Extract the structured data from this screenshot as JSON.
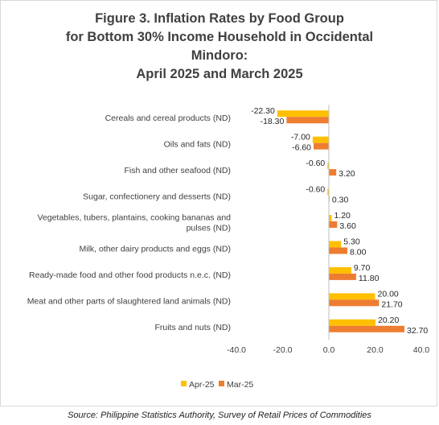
{
  "title_lines": [
    "Figure 3. Inflation Rates by Food Group",
    "for Bottom 30% Income Household in  Occidental",
    "Mindoro:",
    "April 2025 and March 2025"
  ],
  "source": "Source: Philippine Statistics Authority, Survey of Retail Prices of Commodities",
  "chart_data": {
    "type": "bar",
    "orientation": "horizontal",
    "categories": [
      [
        "Cereals and cereal products (ND)"
      ],
      [
        "Oils and fats (ND)"
      ],
      [
        "Fish and other seafood (ND)"
      ],
      [
        "Sugar, confectionery and desserts (ND)"
      ],
      [
        "Vegetables, tubers, plantains, cooking bananas and",
        "pulses (ND)"
      ],
      [
        "Milk, other dairy products and eggs (ND)"
      ],
      [
        "Ready-made food and other food products n.e.c. (ND)"
      ],
      [
        "Meat and other parts of slaughtered land animals (ND)"
      ],
      [
        "Fruits and nuts (ND)"
      ]
    ],
    "series": [
      {
        "name": "Apr-25",
        "color": "#FFC000",
        "values": [
          -22.3,
          -7.0,
          -0.6,
          -0.6,
          1.2,
          5.3,
          9.7,
          20.0,
          20.2
        ],
        "labels": [
          "-22.30",
          "-7.00",
          "-0.60",
          "-0.60",
          "1.20",
          "5.30",
          "9.70",
          "20.00",
          "20.20"
        ]
      },
      {
        "name": "Mar-25",
        "color": "#ED7D31",
        "values": [
          -18.3,
          -6.6,
          3.2,
          0.3,
          3.6,
          8.0,
          11.8,
          21.7,
          32.7
        ],
        "labels": [
          "-18.30",
          "-6.60",
          "3.20",
          "0.30",
          "3.60",
          "8.00",
          "11.80",
          "21.70",
          "32.70"
        ]
      }
    ],
    "xlim": [
      -40,
      40
    ],
    "xticks": [
      -40,
      -20,
      0,
      20,
      40
    ],
    "xtick_labels": [
      "-40.0",
      "-20.0",
      "0.0",
      "20.0",
      "40.0"
    ],
    "grid": false,
    "legend_position": "bottom"
  }
}
